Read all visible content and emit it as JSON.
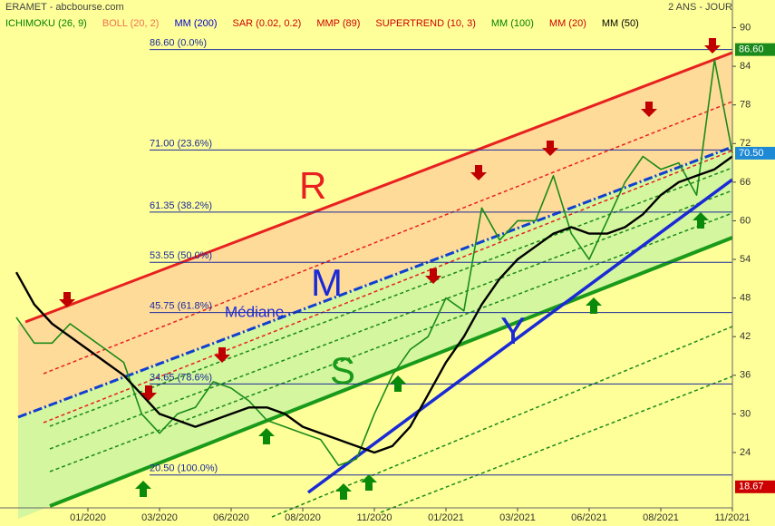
{
  "chart_data": {
    "type": "line",
    "title": "ERAMET - abcbourse.com",
    "subtitle": "2 ANS - JOUR",
    "indicators": [
      {
        "name": "ICHIMOKU (26, 9)",
        "color": "#008000"
      },
      {
        "name": "BOLL (20, 2)",
        "color": "#f07050"
      },
      {
        "name": "MM (200)",
        "color": "#0000cc"
      },
      {
        "name": "SAR (0.02, 0.2)",
        "color": "#cc0000"
      },
      {
        "name": "MMP (89)",
        "color": "#cc0000"
      },
      {
        "name": "SUPERTREND (10, 3)",
        "color": "#cc0000"
      },
      {
        "name": "MM (100)",
        "color": "#008000"
      },
      {
        "name": "MM (20)",
        "color": "#cc0000"
      },
      {
        "name": "MM (50)",
        "color": "#000000"
      }
    ],
    "categories": [
      null,
      null,
      null,
      null,
      "01/2020",
      null,
      null,
      null,
      "03/2020",
      null,
      null,
      null,
      "06/2020",
      null,
      null,
      null,
      "08/2020",
      null,
      null,
      null,
      "11/2020",
      null,
      null,
      null,
      "01/2021",
      null,
      null,
      null,
      "03/2021",
      null,
      null,
      null,
      "06/2021",
      null,
      null,
      null,
      "08/2021",
      null,
      null,
      null,
      "11/2021"
    ],
    "series": [
      {
        "color": "#1a8a1a",
        "values": [
          45,
          41,
          41,
          44,
          42,
          40,
          38,
          30,
          27,
          30,
          31,
          35,
          34,
          32,
          29,
          28,
          27,
          26,
          22,
          23,
          30,
          36,
          40,
          42,
          48,
          46,
          62,
          57,
          60,
          60,
          67,
          58,
          54,
          60,
          66,
          70,
          68,
          69,
          64,
          85,
          70.5
        ]
      },
      {
        "color": "#000000",
        "values": [
          52,
          47,
          44,
          42,
          40,
          38,
          36,
          33,
          30,
          29,
          28,
          29,
          30,
          31,
          31,
          30,
          28,
          27,
          26,
          25,
          24,
          25,
          28,
          33,
          38,
          42,
          47,
          51,
          54,
          56,
          58,
          59,
          58,
          58,
          59,
          61,
          64,
          66,
          67,
          68,
          70
        ]
      }
    ],
    "levels": [
      {
        "value": 86.6,
        "label": "86.60  (0.0%)"
      },
      {
        "value": 71,
        "label": "71.00  (23.6%)"
      },
      {
        "value": 61.35,
        "label": "61.35  (38.2%)"
      },
      {
        "value": 53.55,
        "label": "53.55  (50.0%)"
      },
      {
        "value": 45.75,
        "label": "45.75  (61.8%)"
      },
      {
        "value": 34.65,
        "label": "34.65  (78.6%)"
      },
      {
        "value": 20.5,
        "label": "20.50  (100.0%)"
      }
    ],
    "badges": [
      {
        "value": 86.6,
        "label": "86.60",
        "color": "#1a8a1a"
      },
      {
        "value": 70.5,
        "label": "70.50",
        "color": "#1e8ad6"
      },
      {
        "value": 18.67,
        "label": "18.67",
        "color": "#cc0000"
      }
    ],
    "annotations": [
      "R",
      "M",
      "S",
      "Y",
      "Médiane"
    ],
    "ylim": [
      15.4,
      94.3
    ],
    "yticks": [
      24,
      30,
      36,
      42,
      48,
      54,
      60,
      66,
      72,
      78,
      84,
      90
    ]
  }
}
